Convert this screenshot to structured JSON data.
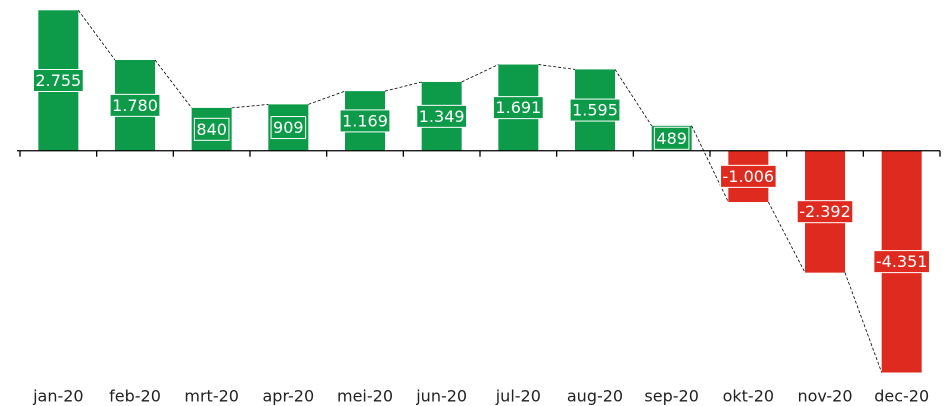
{
  "chart_data": {
    "type": "bar",
    "categories": [
      "jan-20",
      "feb-20",
      "mrt-20",
      "apr-20",
      "mei-20",
      "jun-20",
      "jul-20",
      "aug-20",
      "sep-20",
      "okt-20",
      "nov-20",
      "dec-20"
    ],
    "values": [
      2755,
      1780,
      840,
      909,
      1169,
      1349,
      1691,
      1595,
      489,
      -1006,
      -2392,
      -4351
    ],
    "value_labels": [
      "2.755",
      "1.780",
      "840",
      "909",
      "1.169",
      "1.349",
      "1.691",
      "1.595",
      "489",
      "-1.006",
      "-2.392",
      "-4.351"
    ],
    "colors": {
      "positive": "#0d9a49",
      "negative": "#df2a1f"
    },
    "ylim": [
      -4400,
      2800
    ]
  }
}
